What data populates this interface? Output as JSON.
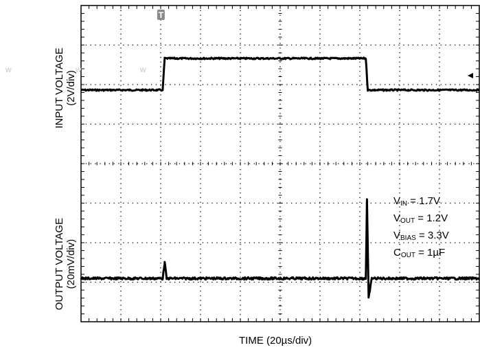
{
  "chart_data": {
    "type": "line",
    "title": "",
    "xlabel": "TIME (20µs/div)",
    "x_divisions": 10,
    "y_divisions": 8,
    "trigger_marker": "T",
    "series": [
      {
        "name": "",
        "axis_label": [
          "INPUT VOLTAGE",
          "(2V/div)"
        ],
        "scale_per_div": "2V/div",
        "points": [
          [
            0,
            1.7
          ],
          [
            2.05,
            1.7
          ],
          [
            2.1,
            3.3
          ],
          [
            7.15,
            3.3
          ],
          [
            7.2,
            1.7
          ],
          [
            10,
            1.7
          ]
        ]
      },
      {
        "name": "",
        "axis_label": [
          "OUTPUT VOLTAGE",
          "(20mV/div)"
        ],
        "scale_per_div": "20mV/div",
        "points": [
          [
            0,
            1.2
          ],
          [
            2.05,
            1.2
          ],
          [
            2.1,
            1.208
          ],
          [
            2.15,
            1.2
          ],
          [
            7.15,
            1.2
          ],
          [
            7.18,
            1.24
          ],
          [
            7.22,
            1.19
          ],
          [
            7.3,
            1.2
          ],
          [
            10,
            1.2
          ]
        ]
      }
    ],
    "conditions": [
      {
        "symbol": "V",
        "sub": "IN",
        "value": " = 1.7V"
      },
      {
        "symbol": "V",
        "sub": "OUT",
        "value": " = 1.2V"
      },
      {
        "symbol": "V",
        "sub": "BIAS",
        "value": " = 3.3V"
      },
      {
        "symbol": "C",
        "sub": "OUT",
        "value": " = 1µF"
      }
    ],
    "watermark": [
      "w",
      "w",
      "w"
    ],
    "colors": {
      "trace": "#000000",
      "grid": "#000000",
      "background": "#ffffff",
      "marker": "#8a8a8a"
    }
  }
}
